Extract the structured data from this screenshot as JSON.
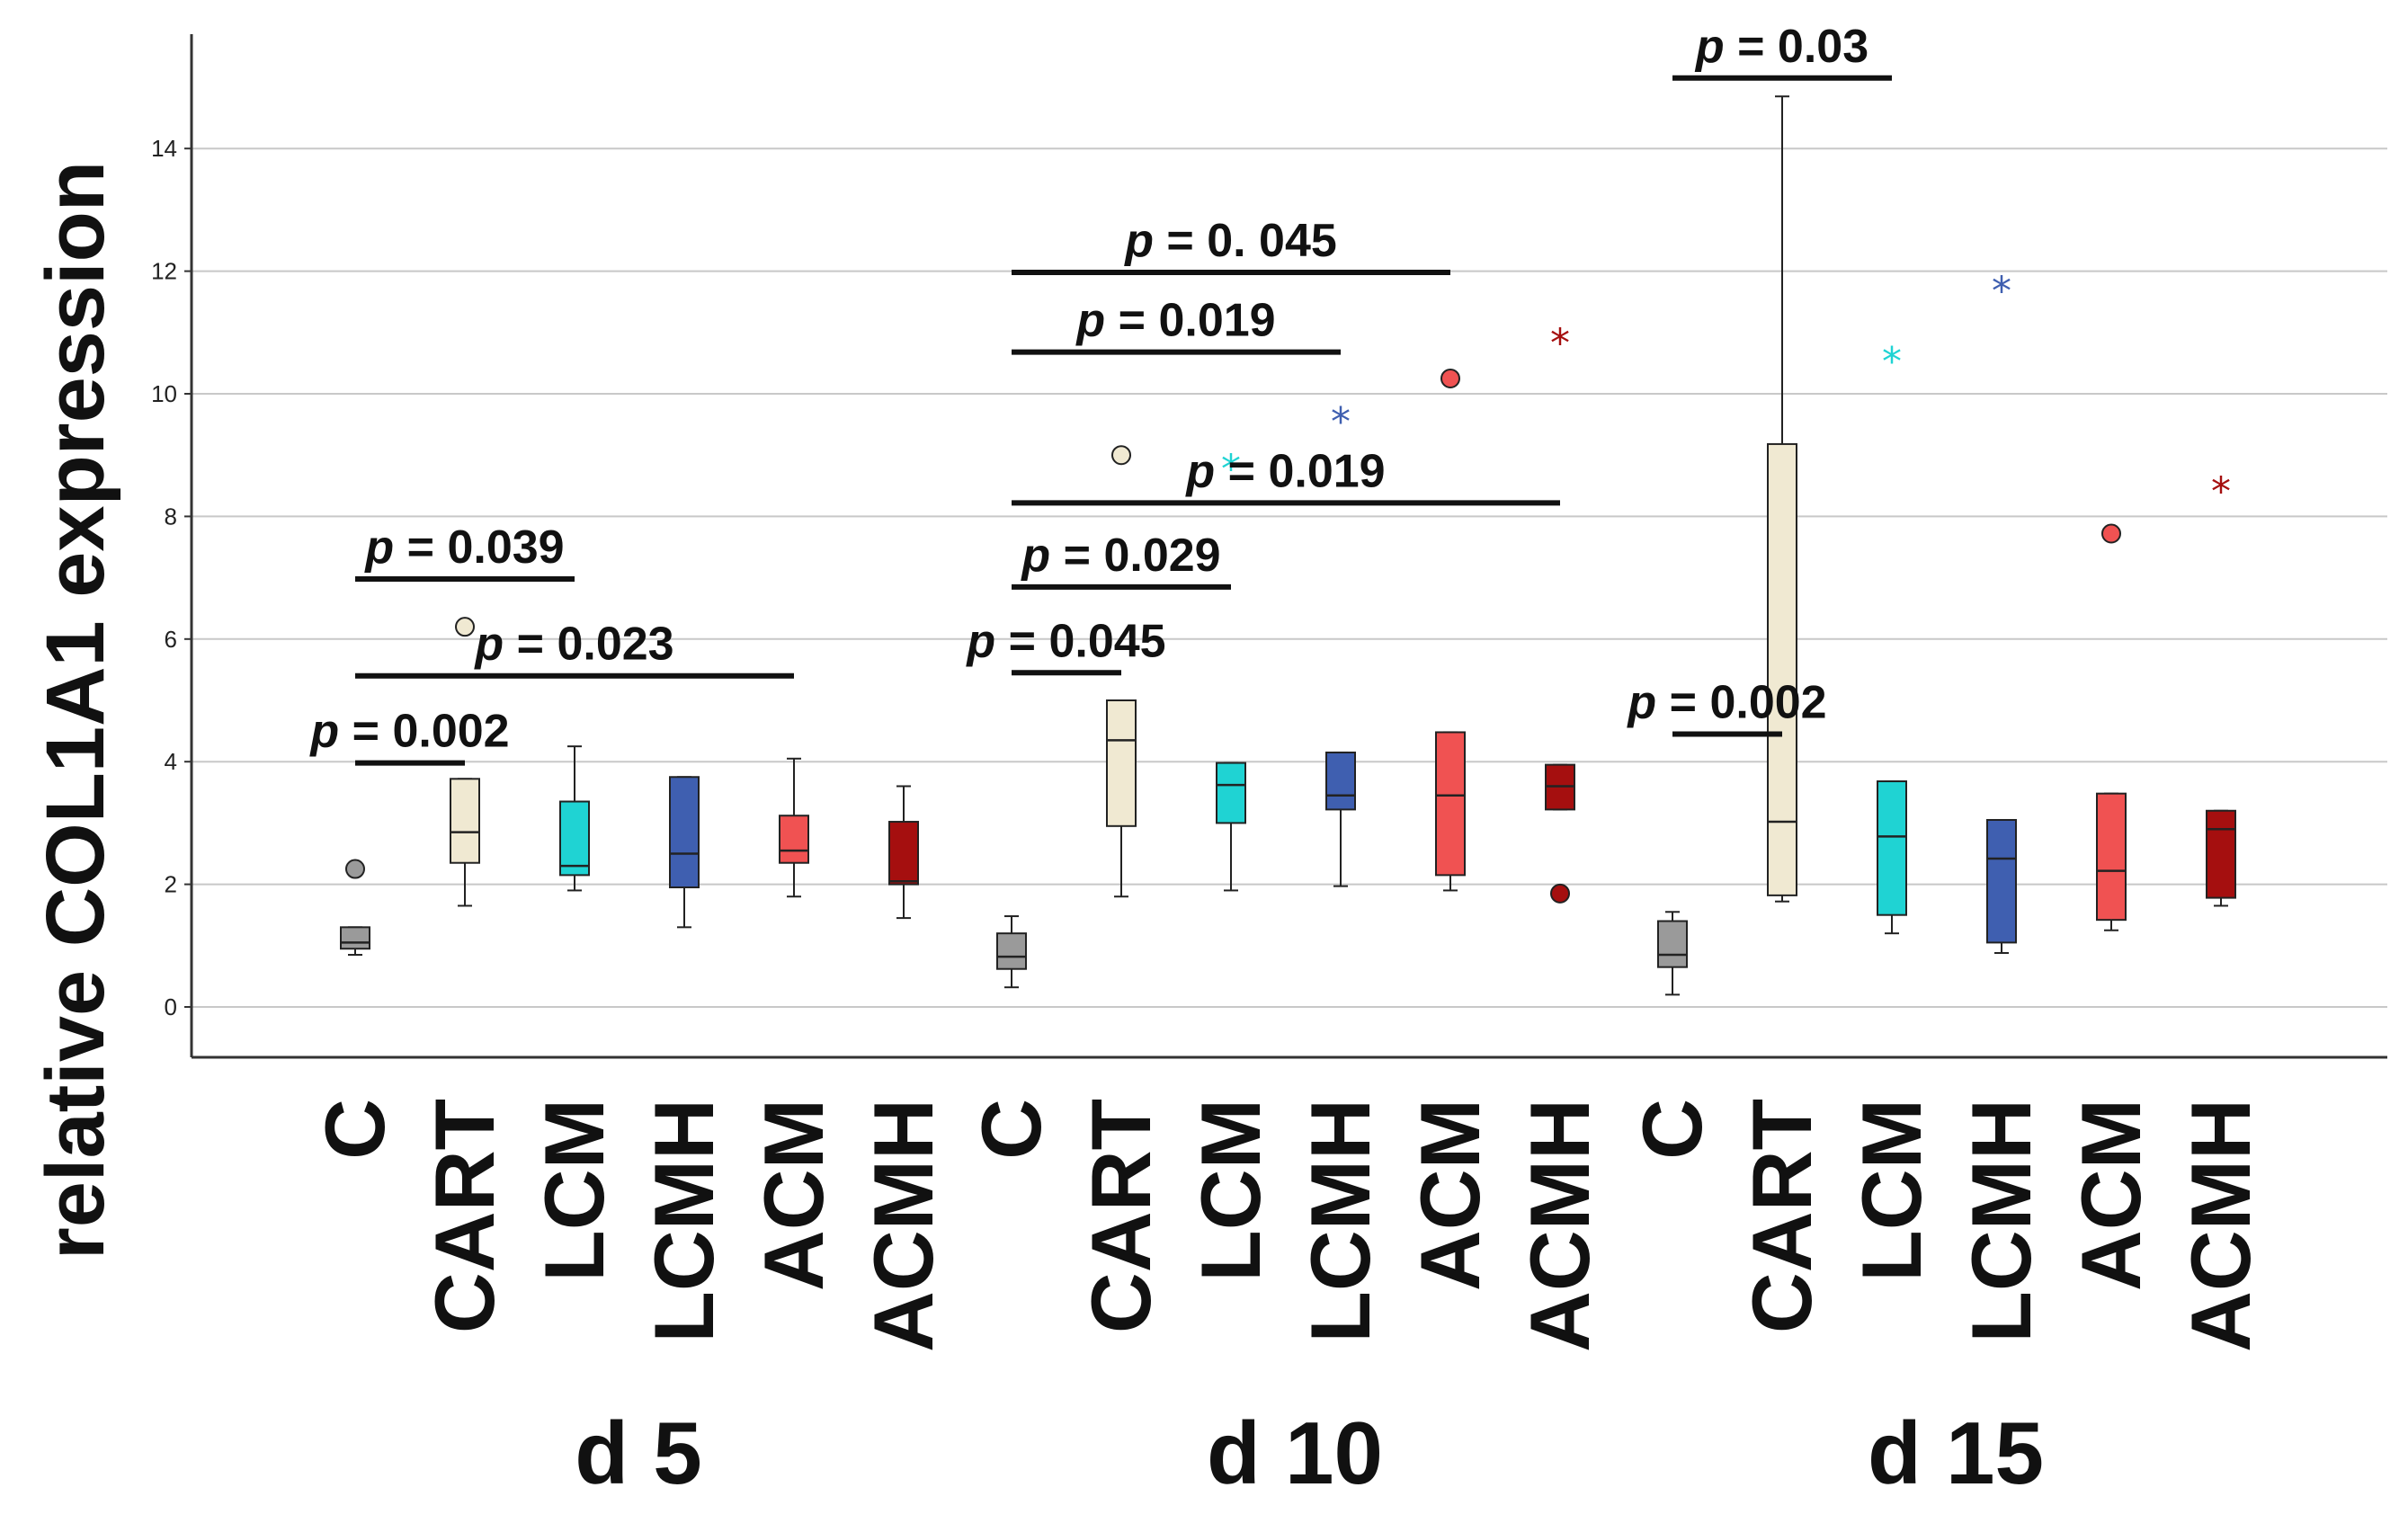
{
  "chart_data": {
    "type": "boxplot",
    "title": "",
    "ylabel": "relative COL1A1 expression",
    "xlabel": "",
    "ylim": [
      -0.8,
      15.8
    ],
    "yticks": [
      0,
      2,
      4,
      6,
      8,
      10,
      12,
      14
    ],
    "grid": true,
    "groups": [
      {
        "label": "d 5",
        "boxes": [
          {
            "category": "C",
            "color": "#9a9a9a",
            "min": 0.85,
            "q1": 0.95,
            "median": 1.05,
            "q3": 1.3,
            "max": 1.3,
            "outliers": [
              {
                "value": 2.25,
                "marker": "circle"
              }
            ]
          },
          {
            "category": "CART",
            "color": "#f0e9d2",
            "min": 1.65,
            "q1": 2.35,
            "median": 2.85,
            "q3": 3.72,
            "max": 3.72,
            "outliers": [
              {
                "value": 6.2,
                "marker": "circle"
              }
            ]
          },
          {
            "category": "LCM",
            "color": "#1fd3d3",
            "min": 1.9,
            "q1": 2.15,
            "median": 2.3,
            "q3": 3.35,
            "max": 4.25,
            "outliers": []
          },
          {
            "category": "LCMH",
            "color": "#3f5fb0",
            "min": 1.3,
            "q1": 1.95,
            "median": 2.5,
            "q3": 3.75,
            "max": 3.75,
            "outliers": []
          },
          {
            "category": "ACM",
            "color": "#f05252",
            "min": 1.8,
            "q1": 2.35,
            "median": 2.55,
            "q3": 3.12,
            "max": 4.05,
            "outliers": []
          },
          {
            "category": "ACMH",
            "color": "#a50f0f",
            "min": 1.45,
            "q1": 2.0,
            "median": 2.05,
            "q3": 3.02,
            "max": 3.6,
            "outliers": []
          }
        ]
      },
      {
        "label": "d 10",
        "boxes": [
          {
            "category": "C",
            "color": "#9a9a9a",
            "min": 0.32,
            "q1": 0.62,
            "median": 0.82,
            "q3": 1.2,
            "max": 1.48,
            "outliers": []
          },
          {
            "category": "CART",
            "color": "#f0e9d2",
            "min": 1.8,
            "q1": 2.95,
            "median": 4.35,
            "q3": 5.0,
            "max": 5.0,
            "outliers": [
              {
                "value": 9.0,
                "marker": "circle"
              }
            ]
          },
          {
            "category": "LCM",
            "color": "#1fd3d3",
            "min": 1.9,
            "q1": 3.0,
            "median": 3.62,
            "q3": 3.98,
            "max": 3.98,
            "outliers": [
              {
                "value": 8.85,
                "marker": "star"
              }
            ]
          },
          {
            "category": "LCMH",
            "color": "#3f5fb0",
            "min": 1.97,
            "q1": 3.22,
            "median": 3.45,
            "q3": 4.15,
            "max": 4.15,
            "outliers": [
              {
                "value": 9.62,
                "marker": "star"
              }
            ]
          },
          {
            "category": "ACM",
            "color": "#f05252",
            "min": 1.9,
            "q1": 2.15,
            "median": 3.45,
            "q3": 4.48,
            "max": 4.48,
            "outliers": [
              {
                "value": 10.25,
                "marker": "circle"
              }
            ]
          },
          {
            "category": "ACMH",
            "color": "#a50f0f",
            "min": 3.22,
            "q1": 3.22,
            "median": 3.6,
            "q3": 3.95,
            "max": 3.95,
            "outliers": [
              {
                "value": 1.85,
                "marker": "circle"
              },
              {
                "value": 10.9,
                "marker": "star"
              }
            ]
          }
        ]
      },
      {
        "label": "d 15",
        "boxes": [
          {
            "category": "C",
            "color": "#9a9a9a",
            "min": 0.2,
            "q1": 0.65,
            "median": 0.85,
            "q3": 1.4,
            "max": 1.55,
            "outliers": []
          },
          {
            "category": "CART",
            "color": "#f0e9d2",
            "min": 1.72,
            "q1": 1.82,
            "median": 3.02,
            "q3": 9.18,
            "max": 14.85,
            "outliers": []
          },
          {
            "category": "LCM",
            "color": "#1fd3d3",
            "min": 1.2,
            "q1": 1.5,
            "median": 2.78,
            "q3": 3.68,
            "max": 3.68,
            "outliers": [
              {
                "value": 10.6,
                "marker": "star"
              }
            ]
          },
          {
            "category": "LCMH",
            "color": "#3f5fb0",
            "min": 0.88,
            "q1": 1.05,
            "median": 2.42,
            "q3": 3.05,
            "max": 3.05,
            "outliers": [
              {
                "value": 11.75,
                "marker": "star"
              }
            ]
          },
          {
            "category": "ACM",
            "color": "#f05252",
            "min": 1.25,
            "q1": 1.42,
            "median": 2.22,
            "q3": 3.48,
            "max": 3.48,
            "outliers": [
              {
                "value": 7.72,
                "marker": "circle"
              }
            ]
          },
          {
            "category": "ACMH",
            "color": "#a50f0f",
            "min": 1.65,
            "q1": 1.78,
            "median": 2.9,
            "q3": 3.2,
            "max": 3.2,
            "outliers": [
              {
                "value": 8.48,
                "marker": "star"
              }
            ]
          }
        ]
      }
    ],
    "annotations": [
      {
        "group": 0,
        "from": 0,
        "to": 1,
        "level": 3.98,
        "p": "p",
        "rest": " = 0.002"
      },
      {
        "group": 0,
        "from": 0,
        "to": 4,
        "level": 5.4,
        "p": "p",
        "rest": " = 0.023"
      },
      {
        "group": 0,
        "from": 0,
        "to": 2,
        "level": 6.98,
        "p": "p",
        "rest": " = 0.039"
      },
      {
        "group": 1,
        "from": 0,
        "to": 1,
        "level": 5.45,
        "p": "p",
        "rest": " = 0.045"
      },
      {
        "group": 1,
        "from": 0,
        "to": 2,
        "level": 6.85,
        "p": "p",
        "rest": " = 0.029"
      },
      {
        "group": 1,
        "from": 0,
        "to": 5,
        "level": 8.22,
        "p": "p",
        "rest": " = 0.019"
      },
      {
        "group": 1,
        "from": 0,
        "to": 3,
        "level": 10.68,
        "p": "p",
        "rest": " = 0.019"
      },
      {
        "group": 1,
        "from": 0,
        "to": 4,
        "level": 11.98,
        "p": "p",
        "rest": " = 0. 045"
      },
      {
        "group": 2,
        "from": 0,
        "to": 1,
        "level": 4.45,
        "p": "p",
        "rest": " = 0.002"
      },
      {
        "group": 2,
        "from": 0,
        "to": 2,
        "level": 15.15,
        "p": "p",
        "rest": " = 0.03"
      }
    ]
  }
}
